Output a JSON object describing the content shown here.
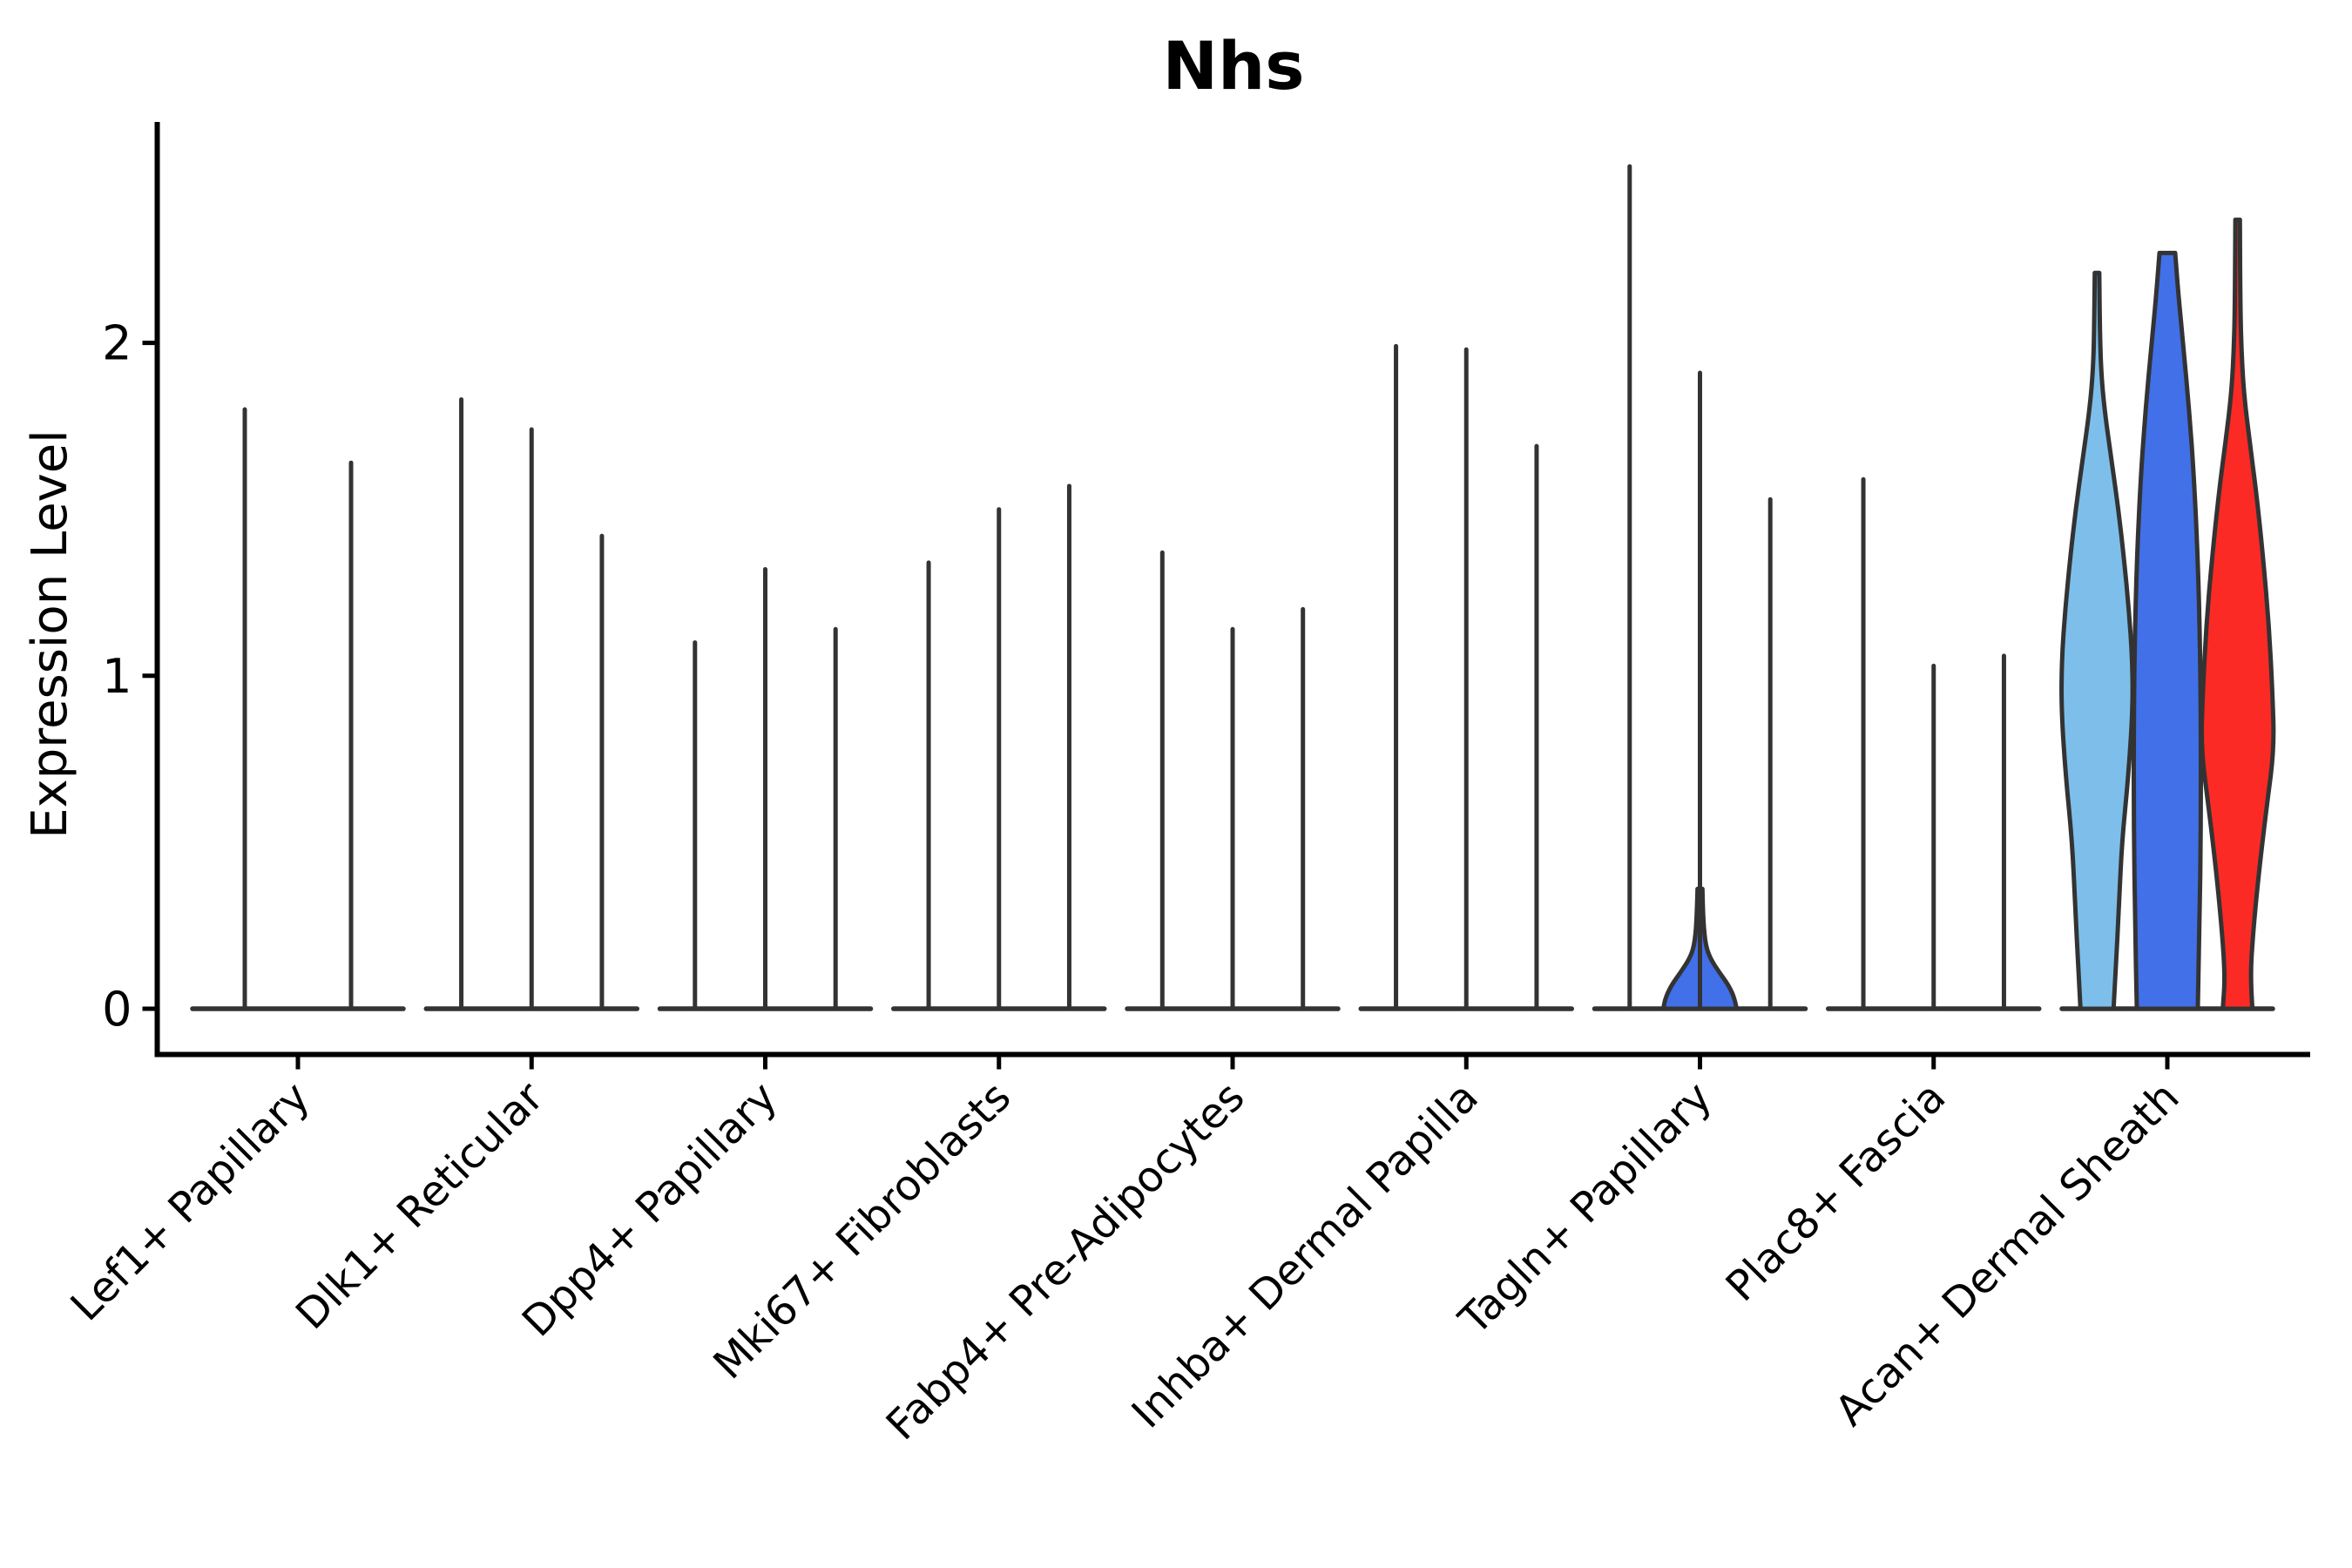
{
  "chart_data": {
    "type": "violin",
    "title": "Nhs",
    "ylabel": "Expression Level",
    "yticks": [
      "0",
      "1",
      "2"
    ],
    "ylim": [
      0,
      2.6
    ],
    "grid": false,
    "legend_position": "none",
    "outline_color": "#333333",
    "axis_color": "#000000",
    "split_colors": [
      "#7DBFEA",
      "#4170E8",
      "#FB2A25"
    ],
    "categories": [
      "Lef1+ Papillary",
      "Dlk1+ Reticular",
      "Dpp4+ Papillary",
      "Mki67+ Fibroblasts",
      "Fabp4+ Pre-Adipocytes",
      "Inhba+ Dermal Papilla",
      "Tagln+ Papillary",
      "Plac8+ Fascia",
      "Acan+ Dermal Sheath"
    ],
    "groups": [
      {
        "label": "Lef1+ Papillary",
        "violins": [
          {
            "kind": "spike",
            "offset": -61,
            "max": 1.8
          },
          {
            "kind": "spike",
            "offset": 61,
            "max": 1.64
          }
        ]
      },
      {
        "label": "Dlk1+ Reticular",
        "violins": [
          {
            "kind": "spike",
            "offset": -80.7,
            "max": 1.83
          },
          {
            "kind": "spike",
            "offset": 0,
            "max": 1.74
          },
          {
            "kind": "spike",
            "offset": 80.7,
            "max": 1.42
          }
        ]
      },
      {
        "label": "Dpp4+ Papillary",
        "violins": [
          {
            "kind": "spike",
            "offset": -80.7,
            "max": 1.1
          },
          {
            "kind": "spike",
            "offset": 0,
            "max": 1.32
          },
          {
            "kind": "spike",
            "offset": 80.7,
            "max": 1.14
          }
        ]
      },
      {
        "label": "Mki67+ Fibroblasts",
        "violins": [
          {
            "kind": "spike",
            "offset": -80.7,
            "max": 1.34
          },
          {
            "kind": "spike",
            "offset": 0,
            "max": 1.5
          },
          {
            "kind": "spike",
            "offset": 80.7,
            "max": 1.57
          }
        ]
      },
      {
        "label": "Fabp4+ Pre-Adipocytes",
        "violins": [
          {
            "kind": "spike",
            "offset": -80.7,
            "max": 1.37
          },
          {
            "kind": "spike",
            "offset": 0,
            "max": 1.14
          },
          {
            "kind": "spike",
            "offset": 80.7,
            "max": 1.2
          }
        ]
      },
      {
        "label": "Inhba+ Dermal Papilla",
        "violins": [
          {
            "kind": "spike",
            "offset": -80.7,
            "max": 1.99
          },
          {
            "kind": "spike",
            "offset": 0,
            "max": 1.98
          },
          {
            "kind": "spike",
            "offset": 80.7,
            "max": 1.69
          }
        ]
      },
      {
        "label": "Tagln+ Papillary",
        "violins": [
          {
            "kind": "spike",
            "offset": -80.7,
            "max": 2.53
          },
          {
            "kind": "spike_bump",
            "offset": 0,
            "max": 1.91,
            "bump_color": "#4170E8",
            "bump_profile": [
              [
                0,
                42
              ],
              [
                0.03,
                40
              ],
              [
                0.07,
                33
              ],
              [
                0.11,
                22
              ],
              [
                0.15,
                12
              ],
              [
                0.19,
                6.5
              ],
              [
                0.26,
                3.8
              ],
              [
                0.36,
                2.8
              ]
            ]
          },
          {
            "kind": "spike",
            "offset": 80.7,
            "max": 1.53
          }
        ]
      },
      {
        "label": "Plac8+ Fascia",
        "violins": [
          {
            "kind": "spike",
            "offset": -80.7,
            "max": 1.59
          },
          {
            "kind": "spike",
            "offset": 0,
            "max": 1.03
          },
          {
            "kind": "spike",
            "offset": 80.7,
            "max": 1.06
          }
        ]
      },
      {
        "label": "Acan+ Dermal Sheath",
        "violins": [
          {
            "kind": "violin",
            "offset": -80.7,
            "max": 2.21,
            "color": "#7DBFEA",
            "profile": [
              [
                0,
                19
              ],
              [
                0.12,
                21.5
              ],
              [
                0.3,
                25
              ],
              [
                0.5,
                28.5
              ],
              [
                0.7,
                36
              ],
              [
                0.9,
                41
              ],
              [
                1.05,
                40.5
              ],
              [
                1.2,
                36.5
              ],
              [
                1.35,
                31
              ],
              [
                1.5,
                24.5
              ],
              [
                1.65,
                16.5
              ],
              [
                1.8,
                8.5
              ],
              [
                1.92,
                4.5
              ],
              [
                2.05,
                3.2
              ],
              [
                2.21,
                2.6
              ]
            ]
          },
          {
            "kind": "violin",
            "offset": 0,
            "max": 2.27,
            "color": "#4170E8",
            "profile": [
              [
                0,
                35
              ],
              [
                0.25,
                37
              ],
              [
                0.55,
                38.5
              ],
              [
                0.85,
                38.5
              ],
              [
                1.1,
                37.5
              ],
              [
                1.35,
                35
              ],
              [
                1.6,
                30.5
              ],
              [
                1.8,
                25
              ],
              [
                2.0,
                18
              ],
              [
                2.15,
                12.5
              ],
              [
                2.27,
                9
              ]
            ]
          },
          {
            "kind": "violin",
            "offset": 80.7,
            "max": 2.37,
            "color": "#FB2A25",
            "profile": [
              [
                0,
                17
              ],
              [
                0.09,
                14.5
              ],
              [
                0.22,
                17.5
              ],
              [
                0.4,
                24
              ],
              [
                0.6,
                33
              ],
              [
                0.78,
                42
              ],
              [
                0.95,
                40
              ],
              [
                1.15,
                36
              ],
              [
                1.35,
                29.5
              ],
              [
                1.55,
                21.5
              ],
              [
                1.7,
                14
              ],
              [
                1.85,
                7
              ],
              [
                2.0,
                4
              ],
              [
                2.15,
                3
              ],
              [
                2.37,
                2.6
              ]
            ]
          }
        ]
      }
    ]
  }
}
